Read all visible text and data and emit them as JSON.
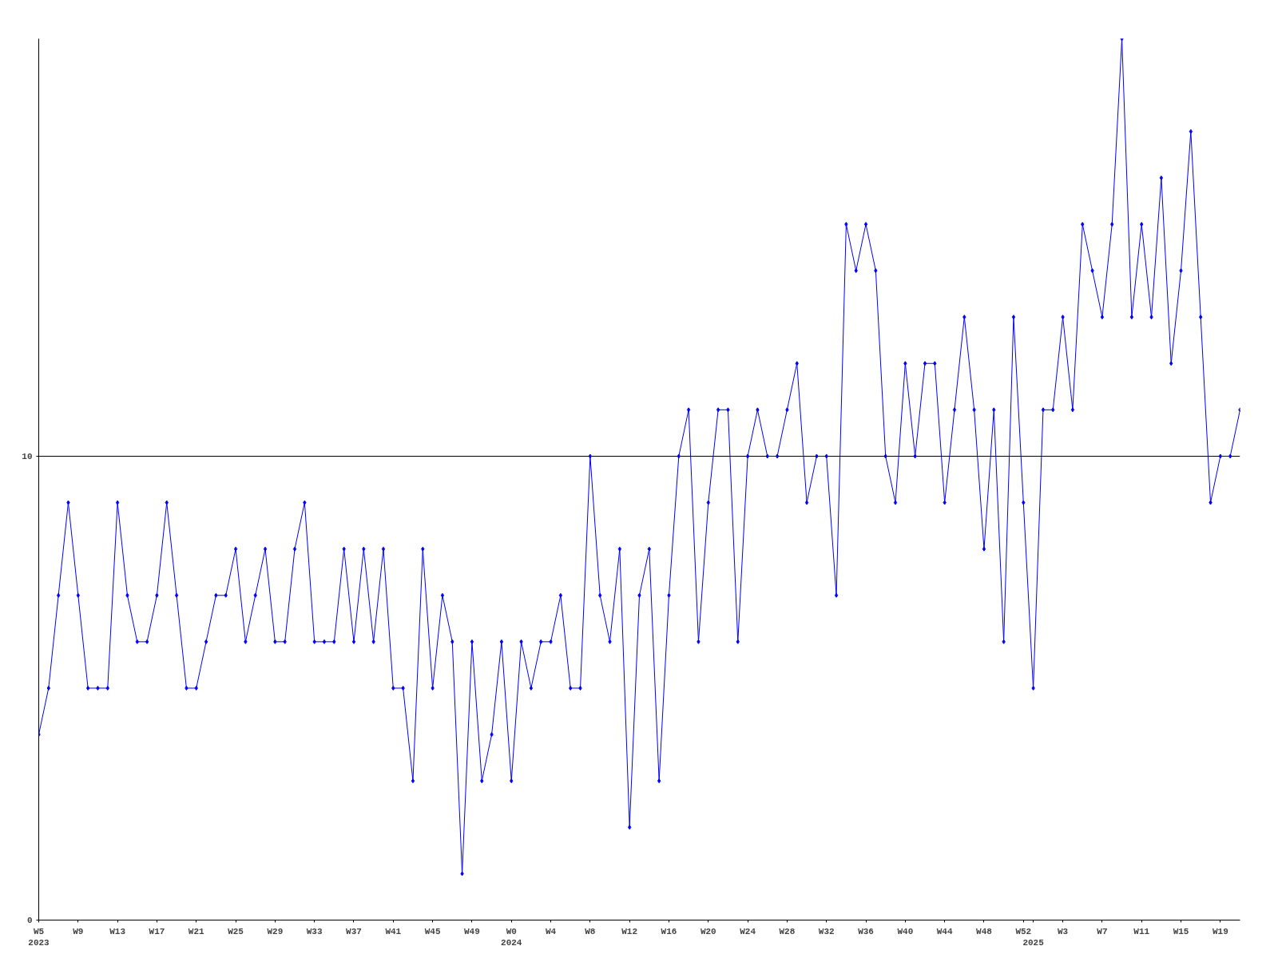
{
  "chart_data": {
    "type": "line",
    "categories": [
      "W5\n2023",
      null,
      null,
      null,
      "W9",
      null,
      null,
      null,
      "W13",
      null,
      null,
      null,
      "W17",
      null,
      null,
      null,
      "W21",
      null,
      null,
      null,
      "W25",
      null,
      null,
      null,
      "W29",
      null,
      null,
      null,
      "W33",
      null,
      null,
      null,
      "W37",
      null,
      null,
      null,
      "W41",
      null,
      null,
      null,
      "W45",
      null,
      null,
      null,
      "W49",
      null,
      null,
      null,
      "W0\n2024",
      null,
      null,
      null,
      "W4",
      null,
      null,
      null,
      "W8",
      null,
      null,
      null,
      "W12",
      null,
      null,
      null,
      "W16",
      null,
      null,
      null,
      "W20",
      null,
      null,
      null,
      "W24",
      null,
      null,
      null,
      "W28",
      null,
      null,
      null,
      "W32",
      null,
      null,
      null,
      "W36",
      null,
      null,
      null,
      "W40",
      null,
      null,
      null,
      "W44",
      null,
      null,
      null,
      "W48",
      null,
      null,
      null,
      "W52",
      "\n2025",
      null,
      null,
      "W3",
      null,
      null,
      null,
      "W7",
      null,
      null,
      null,
      "W11",
      null,
      null,
      null,
      "W15",
      null,
      null,
      null,
      "W19",
      null,
      null
    ],
    "series": [
      {
        "color": "#0000ff",
        "values": [
          4,
          5,
          7,
          9,
          7,
          5,
          5,
          5,
          9,
          7,
          6,
          6,
          7,
          9,
          7,
          5,
          5,
          6,
          7,
          7,
          8,
          6,
          7,
          8,
          6,
          6,
          8,
          9,
          6,
          6,
          6,
          8,
          6,
          8,
          6,
          8,
          5,
          5,
          3,
          8,
          5,
          7,
          6,
          1,
          6,
          3,
          4,
          6,
          3,
          6,
          5,
          6,
          6,
          7,
          5,
          5,
          10,
          7,
          6,
          8,
          2,
          7,
          8,
          3,
          7,
          10,
          11,
          6,
          9,
          11,
          11,
          6,
          10,
          11,
          10,
          10,
          11,
          12,
          9,
          10,
          10,
          7,
          15,
          14,
          15,
          14,
          10,
          9,
          12,
          10,
          12,
          12,
          9,
          11,
          13,
          11,
          8,
          11,
          6,
          13,
          9,
          5,
          11,
          11,
          13,
          11,
          15,
          14,
          13,
          15,
          19,
          13,
          15,
          13,
          16,
          12,
          14,
          17,
          13,
          9,
          10,
          10,
          11
        ]
      }
    ],
    "ylim": [
      0,
      19
    ],
    "yticks": [
      0,
      10
    ],
    "grid": "y",
    "marker": "diamond",
    "line_style": "solid"
  }
}
